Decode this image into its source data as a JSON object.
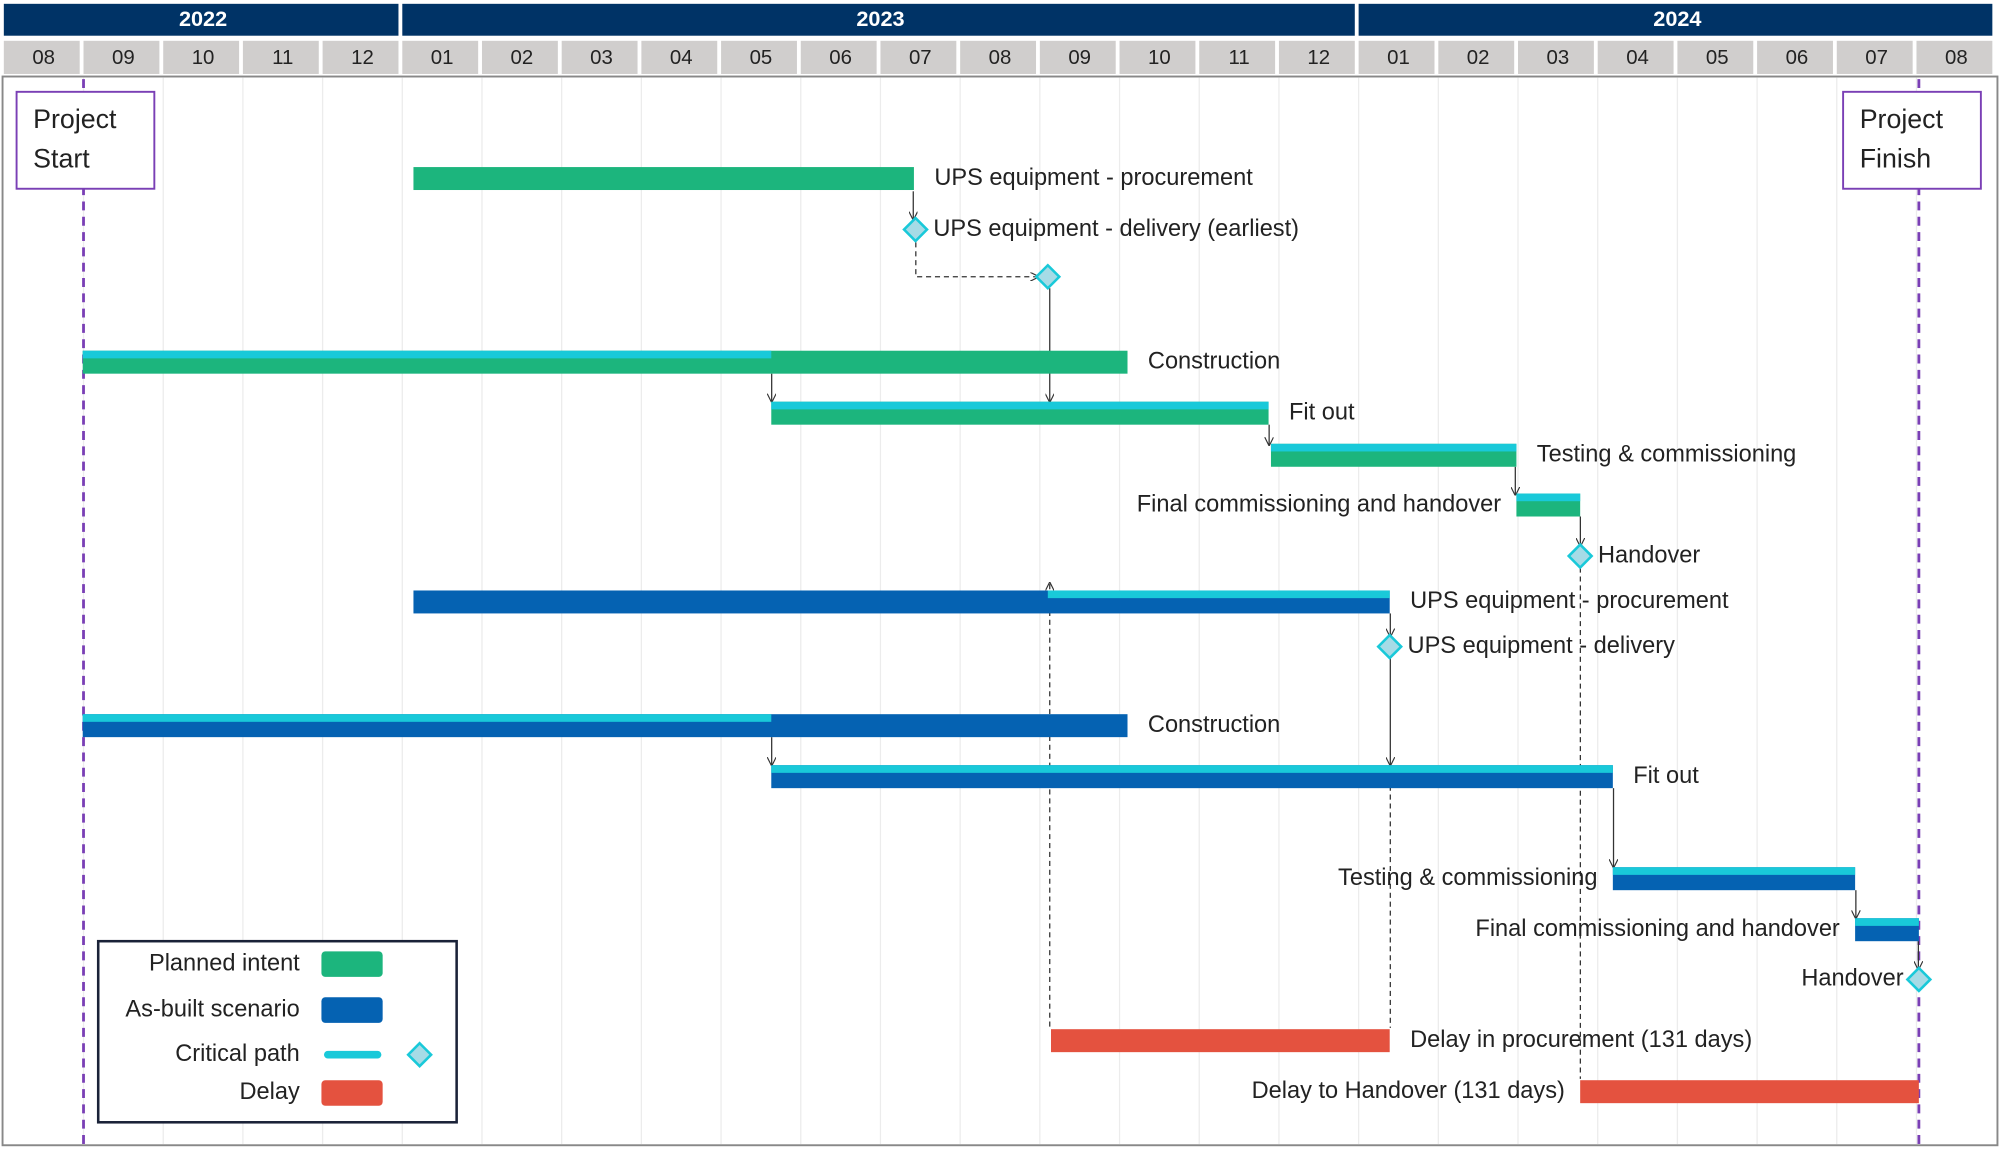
{
  "chart_data": {
    "type": "gantt",
    "years": [
      "2022",
      "2023",
      "2024"
    ],
    "months": [
      "08",
      "09",
      "10",
      "11",
      "12",
      "01",
      "02",
      "03",
      "04",
      "05",
      "06",
      "07",
      "08",
      "09",
      "10",
      "11",
      "12",
      "01",
      "02",
      "03",
      "04",
      "05",
      "06",
      "07",
      "08"
    ],
    "xlim": [
      0,
      25
    ],
    "header_color": "#003366",
    "month_cell_color": "#d0cecd",
    "grid": true,
    "series": [
      {
        "name": "Planned intent",
        "color": "#1cb57d"
      },
      {
        "name": "As-built scenario",
        "color": "#0562b2"
      },
      {
        "name": "Delay",
        "color": "#e4523f"
      }
    ],
    "critical_path": {
      "name": "Critical path",
      "color": "#19c9d9"
    },
    "markers": [
      {
        "label": "Project Start",
        "at": 1,
        "color": "#7a3fb5"
      },
      {
        "label": "Project Finish",
        "at": 24.03,
        "color": "#7a3fb5"
      }
    ],
    "tasks": [
      {
        "name": "UPS equipment - procurement",
        "series": 0,
        "start": 5.14,
        "end": 11.42
      },
      {
        "name": "UPS equipment - delivery (earliest)",
        "series": 0,
        "milestone": 11.44
      },
      {
        "name": null,
        "series": 0,
        "milestone": 13.1
      },
      {
        "name": "Construction",
        "series": 0,
        "start": 0.99,
        "end": 14.1,
        "critical": [
          0.99,
          9.63
        ]
      },
      {
        "name": "Fit out",
        "series": 0,
        "start": 9.63,
        "end": 15.87,
        "critical": [
          9.63,
          15.87
        ]
      },
      {
        "name": "Testing & commissioning",
        "series": 0,
        "start": 15.9,
        "end": 18.98,
        "critical": [
          15.9,
          18.98
        ]
      },
      {
        "name": "Final commissioning and handover",
        "series": 0,
        "start": 18.98,
        "end": 19.78,
        "critical": [
          18.98,
          19.78
        ],
        "label_side": "left"
      },
      {
        "name": "Handover",
        "series": 0,
        "milestone": 19.78
      },
      {
        "name": "UPS equipment - procurement",
        "series": 1,
        "start": 5.14,
        "end": 17.39,
        "critical": [
          13.1,
          17.39
        ]
      },
      {
        "name": "UPS equipment - delivery",
        "series": 1,
        "milestone": 17.39
      },
      {
        "name": "Construction",
        "series": 1,
        "start": 0.99,
        "end": 14.1,
        "critical": [
          0.99,
          9.63
        ]
      },
      {
        "name": "Fit out",
        "series": 1,
        "start": 9.63,
        "end": 20.19,
        "critical": [
          9.63,
          20.19
        ]
      },
      {
        "name": "Testing & commissioning",
        "series": 1,
        "start": 20.19,
        "end": 23.23,
        "critical": [
          20.19,
          23.23
        ],
        "label_side": "left"
      },
      {
        "name": "Final commissioning and handover",
        "series": 1,
        "start": 23.23,
        "end": 24.03,
        "critical": [
          23.23,
          24.03
        ],
        "label_side": "left"
      },
      {
        "name": "Handover",
        "series": 1,
        "milestone": 24.03,
        "label_side": "left"
      },
      {
        "name": "Delay in procurement (131 days)",
        "series": 2,
        "start": 13.14,
        "end": 17.39
      },
      {
        "name": "Delay to Handover (131 days)",
        "series": 2,
        "start": 19.78,
        "end": 24.03,
        "label_side": "left"
      }
    ]
  }
}
